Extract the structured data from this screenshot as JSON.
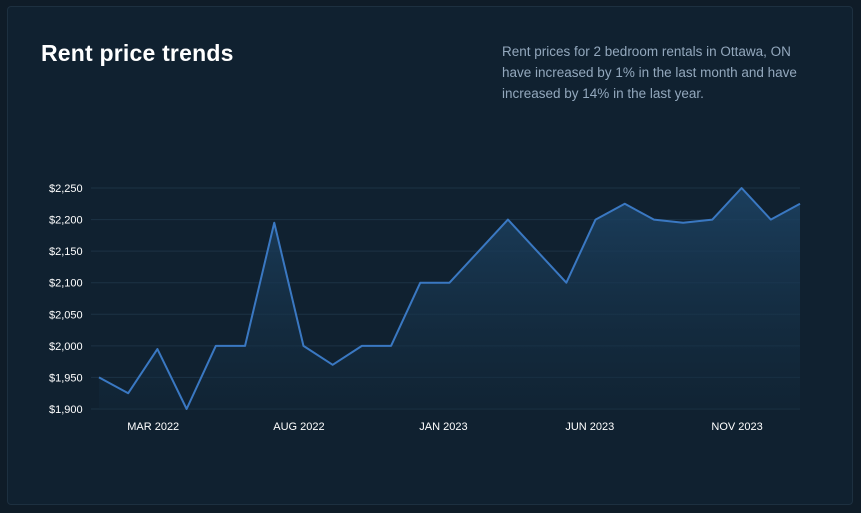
{
  "title": "Rent price trends",
  "description": "Rent prices for 2 bedroom rentals in Ottawa, ON have increased by 1% in the last month and have increased by 14% in the last year.",
  "colors": {
    "line": "#3a78c2",
    "grid": "#1c3244",
    "fill": "#1d4466"
  },
  "chart_data": {
    "type": "area",
    "title": "",
    "xlabel": "",
    "ylabel": "",
    "ylim": [
      1900,
      2250
    ],
    "y_ticks": [
      1900,
      1950,
      2000,
      2050,
      2100,
      2150,
      2200,
      2250
    ],
    "y_tick_labels": [
      "$1,900",
      "$1,950",
      "$2,000",
      "$2,050",
      "$2,100",
      "$2,150",
      "$2,200",
      "$2,250"
    ],
    "x_tick_indices": [
      1,
      6,
      11,
      16,
      21
    ],
    "x_tick_labels": [
      "MAR 2022",
      "AUG 2022",
      "JAN 2023",
      "JUN 2023",
      "NOV 2023"
    ],
    "grid": true,
    "series": [
      {
        "values": [
          1950,
          1925,
          1995,
          1900,
          2000,
          2000,
          2195,
          2000,
          1970,
          2000,
          2000,
          2100,
          2100,
          2150,
          2200,
          2150,
          2100,
          2200,
          2225,
          2200,
          2195,
          2200,
          2250,
          2200,
          2225
        ]
      }
    ]
  }
}
